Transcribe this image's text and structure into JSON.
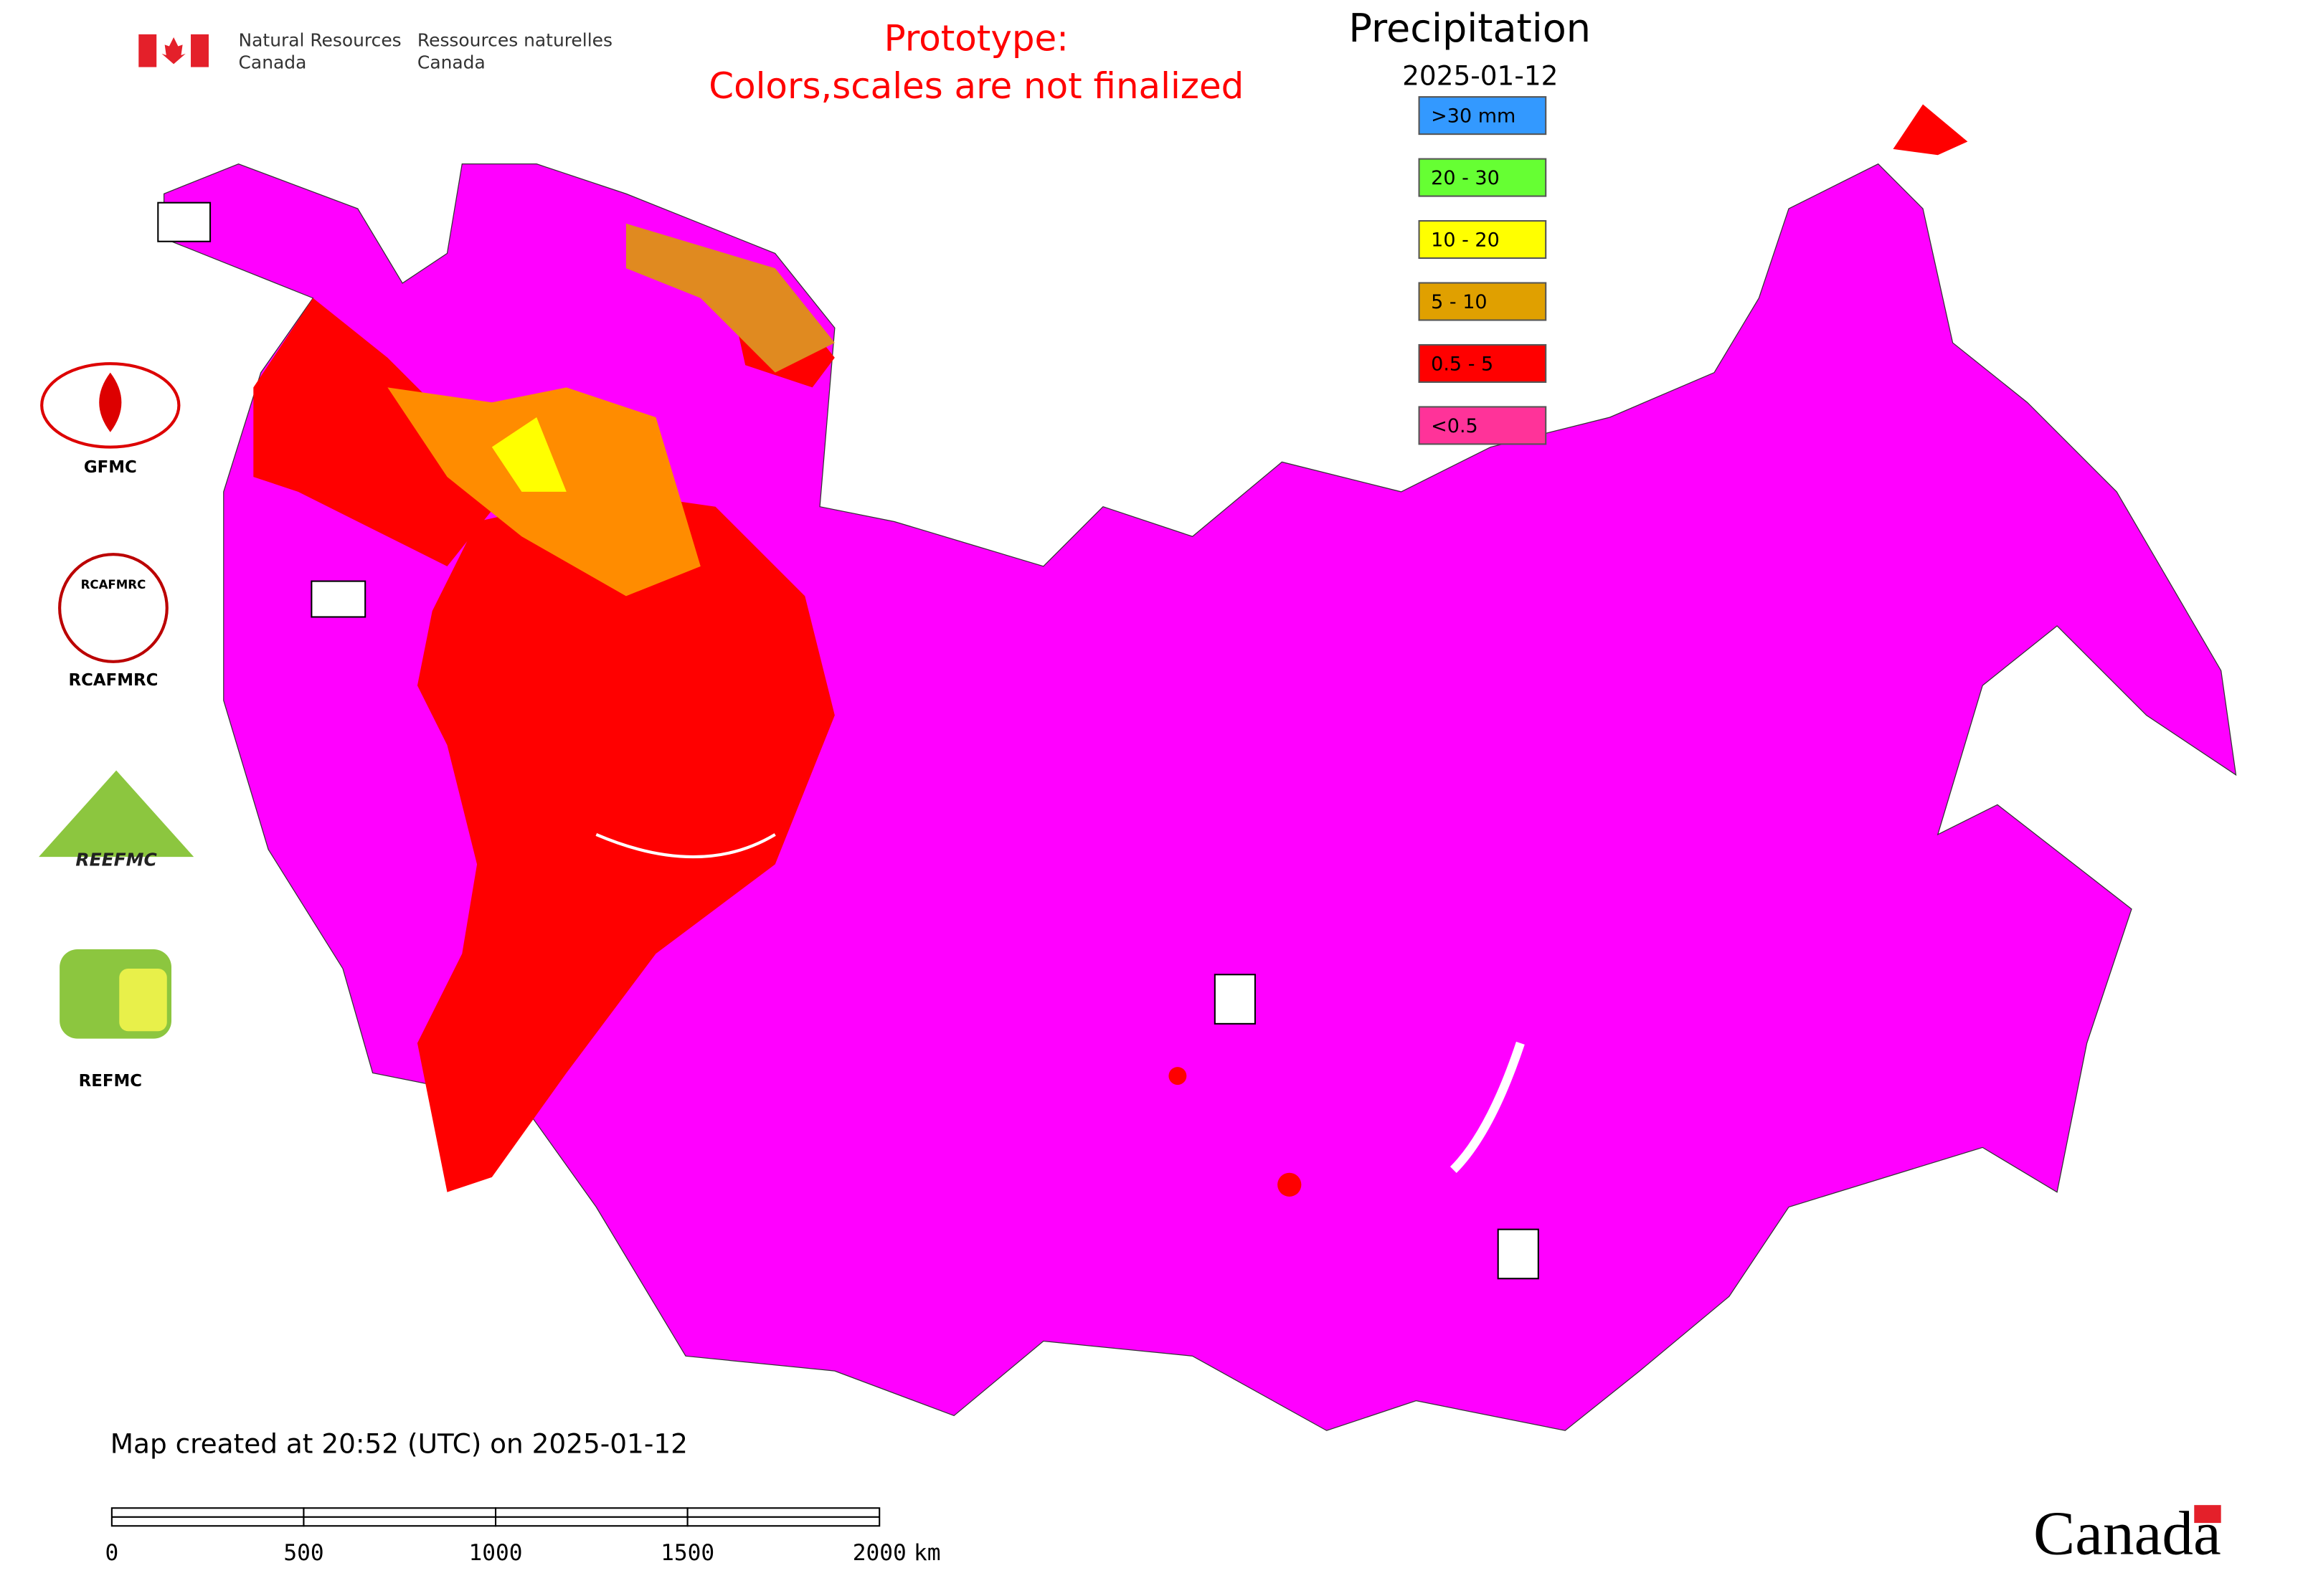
{
  "header": {
    "agency_en": [
      "Natural Resources",
      "Canada"
    ],
    "agency_fr": [
      "Ressources naturelles",
      "Canada"
    ],
    "notice": [
      "Prototype:",
      "Colors,scales are not finalized"
    ]
  },
  "legend": {
    "title": "Precipitation",
    "date": "2025-01-12",
    "items": [
      {
        "label": ">30 mm",
        "color": "#3399ff"
      },
      {
        "label": "20 - 30",
        "color": "#66ff33"
      },
      {
        "label": "10 - 20",
        "color": "#ffff00"
      },
      {
        "label": "5 - 10",
        "color": "#e0a000"
      },
      {
        "label": "0.5 - 5",
        "color": "#ff0000"
      },
      {
        "label": "<0.5",
        "color": "#ff3399"
      }
    ]
  },
  "logos": [
    {
      "label": "GFMC"
    },
    {
      "label": "RCAFMRC",
      "badge": "RCAFMRC"
    },
    {
      "label": "REFMC"
    }
  ],
  "reefmc_logo": "REEFMC",
  "footer": {
    "created": "Map created at 20:52 (UTC) on 2025-01-12",
    "wordmark": "Canada"
  },
  "scale_bar": {
    "ticks": [
      0,
      500,
      1000,
      1500,
      2000
    ],
    "unit": "km"
  }
}
